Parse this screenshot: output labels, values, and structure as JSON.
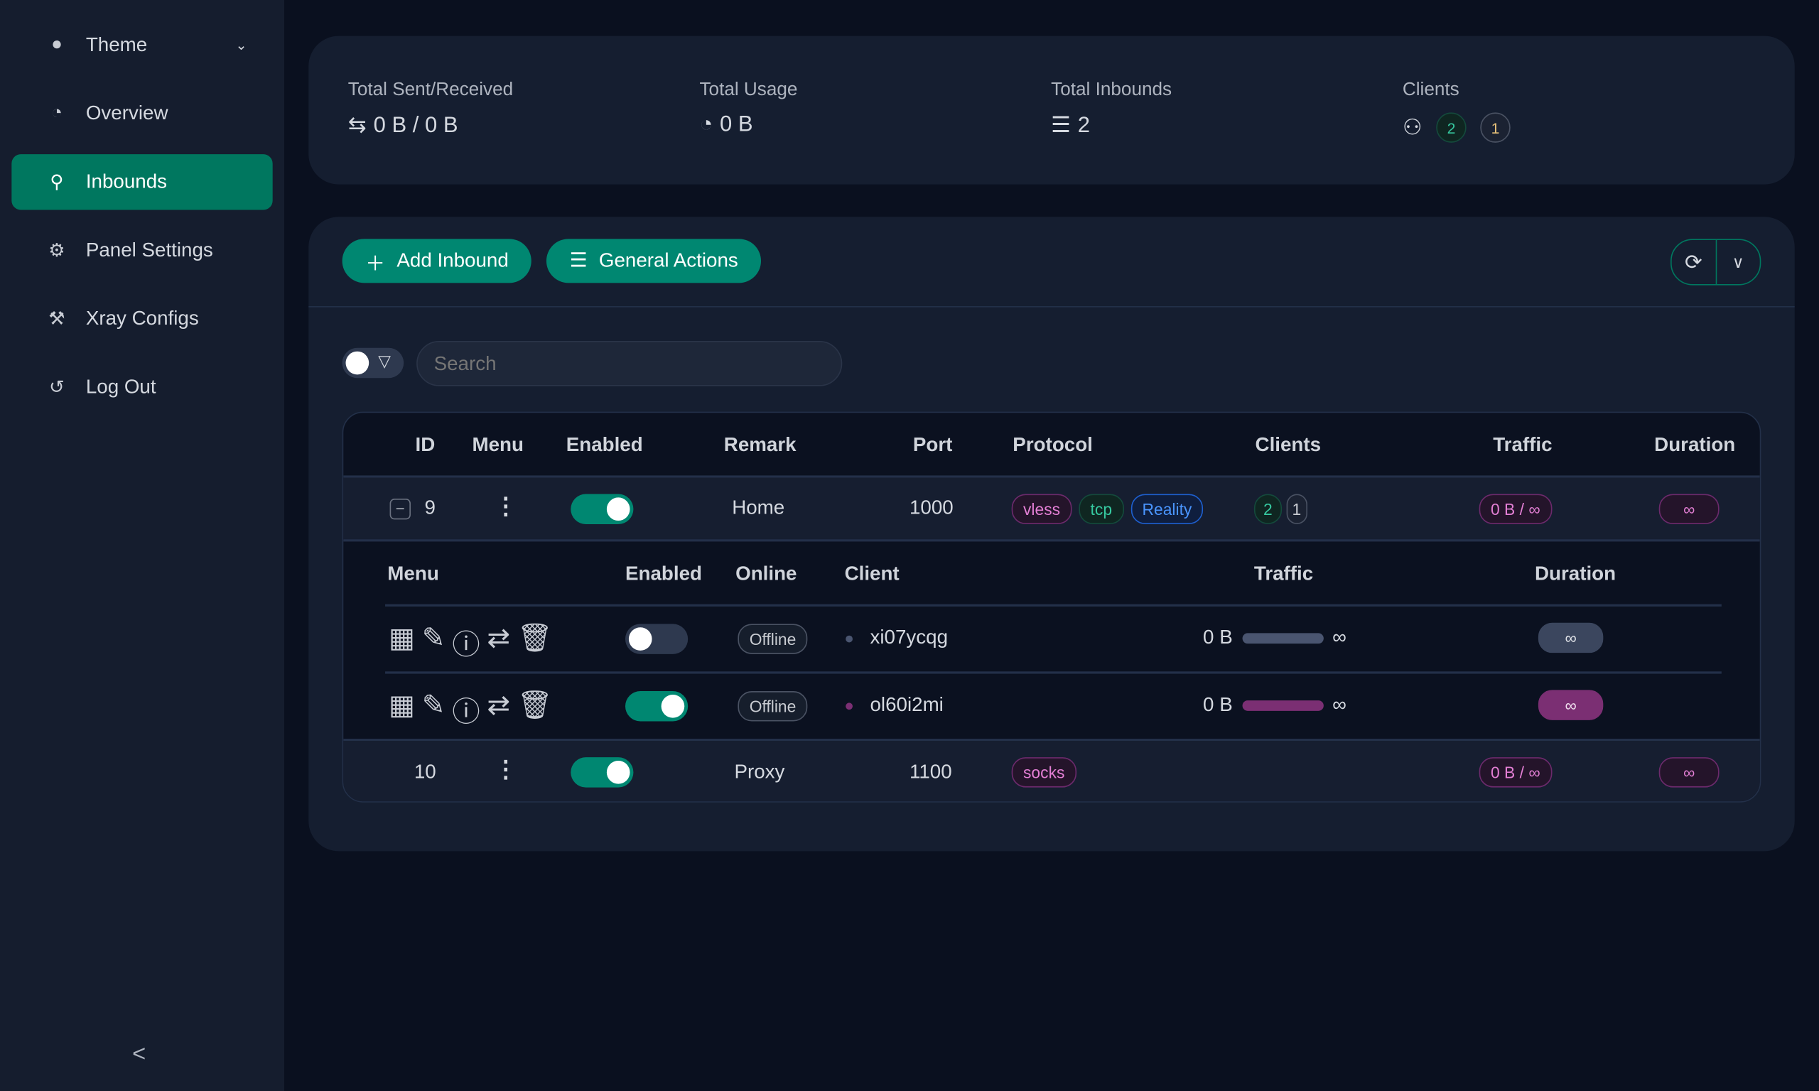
{
  "sidebar": {
    "items": [
      {
        "label": "Theme",
        "icon": "bulb-icon"
      },
      {
        "label": "Overview",
        "icon": "dashboard-icon"
      },
      {
        "label": "Inbounds",
        "icon": "user-icon",
        "active": true
      },
      {
        "label": "Panel Settings",
        "icon": "gear-icon"
      },
      {
        "label": "Xray Configs",
        "icon": "tool-icon"
      },
      {
        "label": "Log Out",
        "icon": "logout-icon"
      }
    ],
    "collapse": "<"
  },
  "stats": {
    "sent_label": "Total Sent/Received",
    "sent_value": "0 B / 0 B",
    "usage_label": "Total Usage",
    "usage_value": "0 B",
    "inbounds_label": "Total Inbounds",
    "inbounds_value": "2",
    "clients_label": "Clients",
    "clients_active": "2",
    "clients_other": "1"
  },
  "toolbar": {
    "add": "Add Inbound",
    "general": "General Actions",
    "search_placeholder": "Search"
  },
  "table": {
    "headers": [
      "ID",
      "Menu",
      "Enabled",
      "Remark",
      "Port",
      "Protocol",
      "Clients",
      "Traffic",
      "Duration"
    ],
    "rows": [
      {
        "id": "9",
        "enabled": true,
        "remark": "Home",
        "port": "1000",
        "protocols": [
          "vless",
          "tcp",
          "Reality"
        ],
        "clients_a": "2",
        "clients_b": "1",
        "traffic": "0 B / ∞",
        "duration": "∞"
      },
      {
        "id": "10",
        "enabled": true,
        "remark": "Proxy",
        "port": "1100",
        "protocols": [
          "socks"
        ],
        "traffic": "0 B / ∞",
        "duration": "∞"
      }
    ],
    "sub_headers": [
      "Menu",
      "Enabled",
      "Online",
      "Client",
      "Traffic",
      "Duration"
    ],
    "clients": [
      {
        "enabled": false,
        "online": "Offline",
        "name": "xi07ycqg",
        "traffic": "0 B",
        "limit": "∞",
        "duration": "∞",
        "color": "#4a5570"
      },
      {
        "enabled": true,
        "online": "Offline",
        "name": "ol60i2mi",
        "traffic": "0 B",
        "limit": "∞",
        "duration": "∞",
        "color": "#7b2f73"
      }
    ]
  },
  "colors": {
    "accent": "#008771",
    "background": "#0a101f",
    "card": "#151e30"
  }
}
